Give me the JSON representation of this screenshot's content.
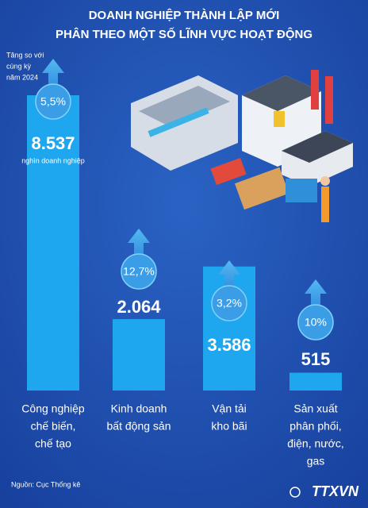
{
  "chart_data": {
    "type": "bar",
    "title": [
      "DOANH NGHIỆP THÀNH LẬP MỚI",
      "PHÂN THEO MỘT SỐ LĨNH VỰC HOẠT ĐỘNG"
    ],
    "categories": [
      [
        "Công nghiệp",
        "chế biến,",
        "chế tạo"
      ],
      [
        "Kinh doanh",
        "bất động sản"
      ],
      [
        "Vận tải",
        "kho bãi"
      ],
      [
        "Sản xuất",
        "phân phối,",
        "điện, nước,",
        "gas"
      ]
    ],
    "values": [
      8537,
      2064,
      3586,
      515
    ],
    "value_labels": [
      "8.537",
      "2.064",
      "3.586",
      "515"
    ],
    "unit": "nghìn doanh nghiệp",
    "color": "#1ea6ee",
    "growth": {
      "label": [
        "Tăng so với",
        "cùng kỳ",
        "năm 2024"
      ],
      "values": [
        5.5,
        12.7,
        3.2,
        10
      ],
      "value_labels": [
        "5,5%",
        "12,7%",
        "3,2%",
        "10%"
      ],
      "color": "#3b9de6"
    },
    "source": "Nguồn: Cục Thống kê",
    "logo": "TTXVN"
  }
}
